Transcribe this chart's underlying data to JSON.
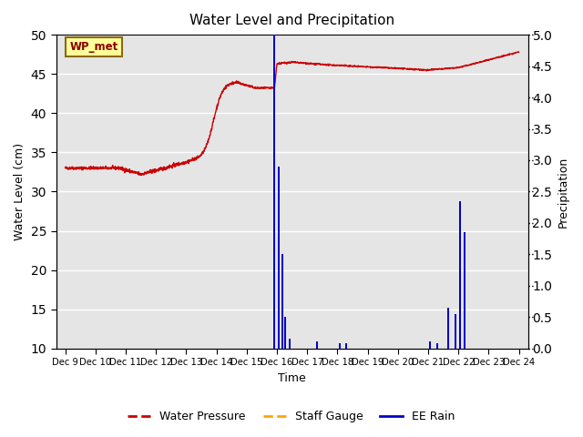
{
  "title": "Water Level and Precipitation",
  "xlabel": "Time",
  "ylabel_left": "Water Level (cm)",
  "ylabel_right": "Precipitation",
  "ylim_left": [
    10,
    50
  ],
  "ylim_right": [
    0.0,
    5.0
  ],
  "yticks_left": [
    10,
    15,
    20,
    25,
    30,
    35,
    40,
    45,
    50
  ],
  "yticks_right": [
    0.0,
    0.5,
    1.0,
    1.5,
    2.0,
    2.5,
    3.0,
    3.5,
    4.0,
    4.5,
    5.0
  ],
  "background_color": "#e5e5e5",
  "figure_color": "#ffffff",
  "wp_label": "WP_met",
  "wp_box_color": "#ffff99",
  "wp_box_edge": "#8B6914",
  "legend_entries": [
    "Water Pressure",
    "Staff Gauge",
    "EE Rain"
  ],
  "legend_colors": [
    "#cc0000",
    "#ffa500",
    "#0000cc"
  ],
  "water_pressure_color": "#cc0000",
  "ee_rain_color": "#0000cc",
  "staff_gauge_color": "#ffa500",
  "xtick_labels": [
    "Dec 9",
    "Dec 10",
    "Dec 11",
    "Dec 12",
    "Dec 13",
    "Dec 14",
    "Dec 15",
    "Dec 16",
    "Dec 17",
    "Dec 18",
    "Dec 19",
    "Dec 20",
    "Dec 21",
    "Dec 22",
    "Dec 23",
    "Dec 24"
  ],
  "xtick_positions": [
    9,
    10,
    11,
    12,
    13,
    14,
    15,
    16,
    17,
    18,
    19,
    20,
    21,
    22,
    23,
    24
  ],
  "xlim": [
    8.7,
    24.3
  ],
  "rain_events": [
    {
      "day": 15.92,
      "precip": 5.0
    },
    {
      "day": 16.07,
      "precip": 2.9
    },
    {
      "day": 16.18,
      "precip": 1.5
    },
    {
      "day": 16.28,
      "precip": 0.5
    },
    {
      "day": 16.42,
      "precip": 0.15
    },
    {
      "day": 17.32,
      "precip": 0.12
    },
    {
      "day": 18.08,
      "precip": 0.08
    },
    {
      "day": 18.28,
      "precip": 0.08
    },
    {
      "day": 21.05,
      "precip": 0.12
    },
    {
      "day": 21.3,
      "precip": 0.08
    },
    {
      "day": 21.65,
      "precip": 0.65
    },
    {
      "day": 21.9,
      "precip": 0.55
    },
    {
      "day": 22.05,
      "precip": 2.35
    },
    {
      "day": 22.2,
      "precip": 1.85
    }
  ]
}
